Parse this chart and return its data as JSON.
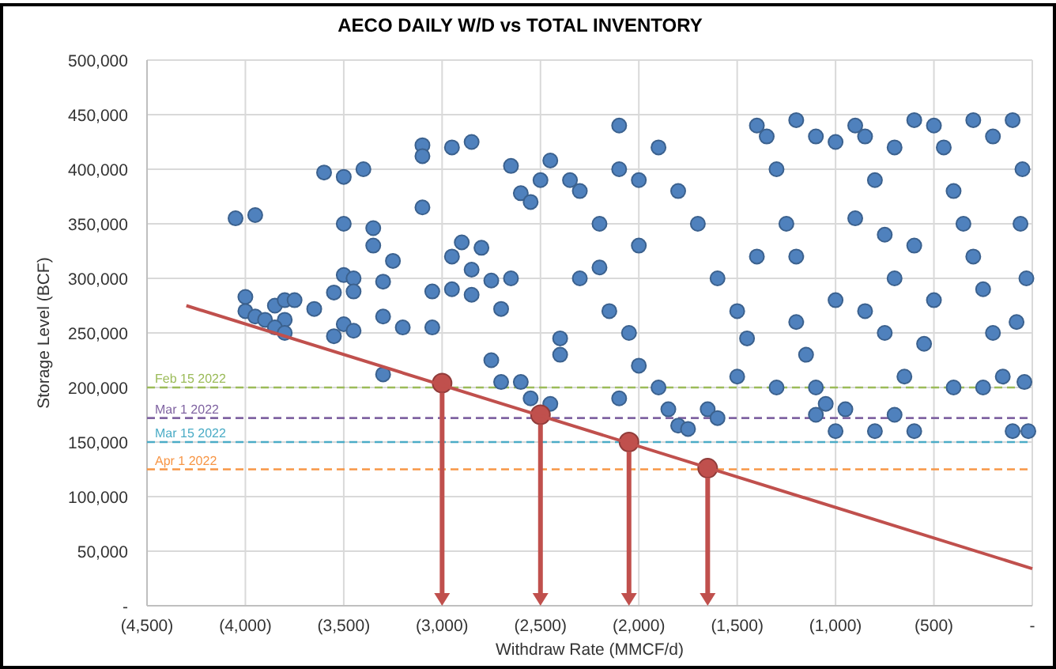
{
  "chart_data": {
    "type": "scatter",
    "title": "AECO DAILY W/D vs TOTAL INVENTORY",
    "xlabel": "Withdraw Rate (MMCF/d)",
    "ylabel": "Storage Level (BCF)",
    "xlim": [
      -4500,
      0
    ],
    "xticks": [
      {
        "value": -4500,
        "label": "(4,500)"
      },
      {
        "value": -4000,
        "label": "(4,000)"
      },
      {
        "value": -3500,
        "label": "(3,500)"
      },
      {
        "value": -3000,
        "label": "(3,000)"
      },
      {
        "value": -2500,
        "label": "(2,500)"
      },
      {
        "value": -2000,
        "label": "(2,000)"
      },
      {
        "value": -1500,
        "label": "(1,500)"
      },
      {
        "value": -1000,
        "label": "(1,000)"
      },
      {
        "value": -500,
        "label": "(500)"
      },
      {
        "value": 0,
        "label": "-"
      }
    ],
    "ylim": [
      0,
      500000
    ],
    "yticks": [
      {
        "value": 0,
        "label": "-"
      },
      {
        "value": 50000,
        "label": "50,000"
      },
      {
        "value": 100000,
        "label": "100,000"
      },
      {
        "value": 150000,
        "label": "150,000"
      },
      {
        "value": 200000,
        "label": "200,000"
      },
      {
        "value": 250000,
        "label": "250,000"
      },
      {
        "value": 300000,
        "label": "300,000"
      },
      {
        "value": 350000,
        "label": "350,000"
      },
      {
        "value": 400000,
        "label": "400,000"
      },
      {
        "value": 450000,
        "label": "450,000"
      },
      {
        "value": 500000,
        "label": "500,000"
      }
    ],
    "grid": true,
    "marker": "circle",
    "ref_lines": [
      {
        "axis": "y",
        "value": 200000,
        "label": "Feb 15 2022",
        "color": "#9bbb59",
        "line_style": "dashed"
      },
      {
        "axis": "y",
        "value": 172000,
        "label": "Mar 1 2022",
        "color": "#8064a2",
        "line_style": "dashed"
      },
      {
        "axis": "y",
        "value": 150000,
        "label": "Mar 15 2022",
        "color": "#4bacc6",
        "line_style": "dashed"
      },
      {
        "axis": "y",
        "value": 125000,
        "label": "Apr 1 2022",
        "color": "#f79646",
        "line_style": "dashed"
      }
    ],
    "series": [
      {
        "color": "#4f81bd",
        "x": [
          -4050,
          -3950,
          -4000,
          -4000,
          -3950,
          -3900,
          -3850,
          -3800,
          -3750,
          -3800,
          -3850,
          -3800,
          -3650,
          -3600,
          -3500,
          -3400,
          -3500,
          -3500,
          -3450,
          -3450,
          -3550,
          -3350,
          -3350,
          -3300,
          -3250,
          -3500,
          -3450,
          -3550,
          -3300,
          -3200,
          -3300,
          -3100,
          -3100,
          -3100,
          -3050,
          -3050,
          -2950,
          -2850,
          -2950,
          -2900,
          -2950,
          -2850,
          -2800,
          -2850,
          -2750,
          -2650,
          -2600,
          -2550,
          -2650,
          -2700,
          -2750,
          -2700,
          -2600,
          -2550,
          -2450,
          -2400,
          -2400,
          -2500,
          -2450,
          -2350,
          -2300,
          -2200,
          -2100,
          -2100,
          -2000,
          -2000,
          -2200,
          -2300,
          -2150,
          -2050,
          -2000,
          -2100,
          -1900,
          -1850,
          -1800,
          -1750,
          -1650,
          -1600,
          -1900,
          -1800,
          -1700,
          -1600,
          -1500,
          -1450,
          -1500,
          -1400,
          -1350,
          -1300,
          -1250,
          -1200,
          -1200,
          -1150,
          -1100,
          -1100,
          -1050,
          -1000,
          -950,
          -900,
          -1000,
          -850,
          -800,
          -750,
          -700,
          -750,
          -650,
          -700,
          -800,
          -600,
          -500,
          -450,
          -400,
          -350,
          -300,
          -250,
          -200,
          -150,
          -100,
          -50,
          -60,
          -30,
          -80,
          -40,
          -100,
          -20,
          -600,
          -300,
          -200,
          -1200,
          -1100,
          -700,
          -900,
          -600,
          -500,
          -1000,
          -1400,
          -1300,
          -400,
          -250,
          -550,
          -850
        ],
        "values": [
          355000,
          358000,
          283000,
          270000,
          265000,
          262000,
          275000,
          280000,
          280000,
          262000,
          255000,
          250000,
          272000,
          397000,
          393000,
          400000,
          350000,
          303000,
          300000,
          288000,
          287000,
          346000,
          330000,
          297000,
          316000,
          258000,
          252000,
          247000,
          265000,
          255000,
          212000,
          422000,
          412000,
          365000,
          255000,
          288000,
          420000,
          425000,
          320000,
          333000,
          290000,
          308000,
          328000,
          285000,
          298000,
          403000,
          378000,
          370000,
          300000,
          272000,
          225000,
          205000,
          205000,
          190000,
          185000,
          245000,
          230000,
          390000,
          408000,
          390000,
          380000,
          350000,
          440000,
          400000,
          390000,
          330000,
          310000,
          300000,
          270000,
          250000,
          220000,
          190000,
          200000,
          180000,
          165000,
          162000,
          180000,
          172000,
          420000,
          380000,
          350000,
          300000,
          270000,
          245000,
          210000,
          440000,
          430000,
          400000,
          350000,
          320000,
          260000,
          230000,
          200000,
          175000,
          185000,
          160000,
          180000,
          440000,
          425000,
          430000,
          390000,
          340000,
          300000,
          250000,
          210000,
          175000,
          160000,
          160000,
          440000,
          420000,
          380000,
          350000,
          320000,
          290000,
          250000,
          210000,
          445000,
          400000,
          350000,
          300000,
          260000,
          205000,
          160000,
          160000,
          445000,
          445000,
          430000,
          445000,
          430000,
          420000,
          355000,
          330000,
          280000,
          280000,
          320000,
          200000,
          200000,
          200000,
          240000,
          270000
        ]
      },
      {
        "color": "#c0504d",
        "x": [
          -3000,
          -2500,
          -2050,
          -1650
        ],
        "values": [
          204000,
          175000,
          150000,
          126000
        ]
      },
      {
        "type": "line",
        "color": "#c0504d",
        "marker": "none",
        "x": [
          -4300,
          0
        ],
        "values": [
          275000,
          34000
        ]
      }
    ]
  }
}
